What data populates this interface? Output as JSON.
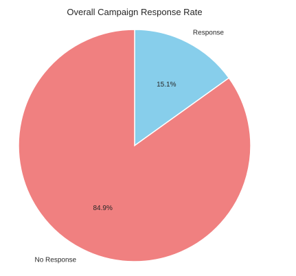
{
  "chart_data": {
    "type": "pie",
    "title": "Overall Campaign Response Rate",
    "slices": [
      {
        "label": "Response",
        "value": 15.1,
        "pct_label": "15.1%",
        "color": "#87CEEB"
      },
      {
        "label": "No Response",
        "value": 84.9,
        "pct_label": "84.9%",
        "color": "#F08080"
      }
    ],
    "start_angle_deg": 90,
    "direction": "clockwise",
    "edge_color": "#ffffff"
  }
}
